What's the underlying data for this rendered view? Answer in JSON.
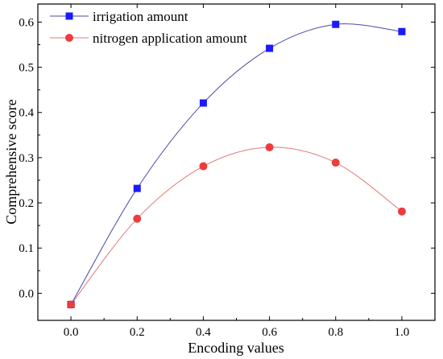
{
  "chart_data": {
    "type": "line",
    "xlabel": "Encoding values",
    "ylabel": "Comprehensive score",
    "xlim": [
      -0.1,
      1.1
    ],
    "ylim": [
      -0.06,
      0.64
    ],
    "xticks": [
      "0.0",
      "0.2",
      "0.4",
      "0.6",
      "0.8",
      "1.0"
    ],
    "xtick_values": [
      0.0,
      0.2,
      0.4,
      0.6,
      0.8,
      1.0
    ],
    "yticks": [
      "0.0",
      "0.1",
      "0.2",
      "0.3",
      "0.4",
      "0.5",
      "0.6"
    ],
    "ytick_values": [
      0.0,
      0.1,
      0.2,
      0.3,
      0.4,
      0.5,
      0.6
    ],
    "grid": false,
    "legend_position": "top-left",
    "series": [
      {
        "name": "irrigation amount",
        "marker": "square",
        "color": "#1a1aff",
        "line_color": "#4a4aa8",
        "x": [
          0.0,
          0.2,
          0.4,
          0.6,
          0.8,
          1.0
        ],
        "y": [
          -0.025,
          0.232,
          0.421,
          0.542,
          0.595,
          0.579
        ]
      },
      {
        "name": "nitrogen application amount",
        "marker": "circle",
        "color": "#ee3b3b",
        "line_color": "#e07a7a",
        "x": [
          0.0,
          0.2,
          0.4,
          0.6,
          0.8,
          1.0
        ],
        "y": [
          -0.025,
          0.165,
          0.281,
          0.323,
          0.289,
          0.181
        ]
      }
    ]
  }
}
